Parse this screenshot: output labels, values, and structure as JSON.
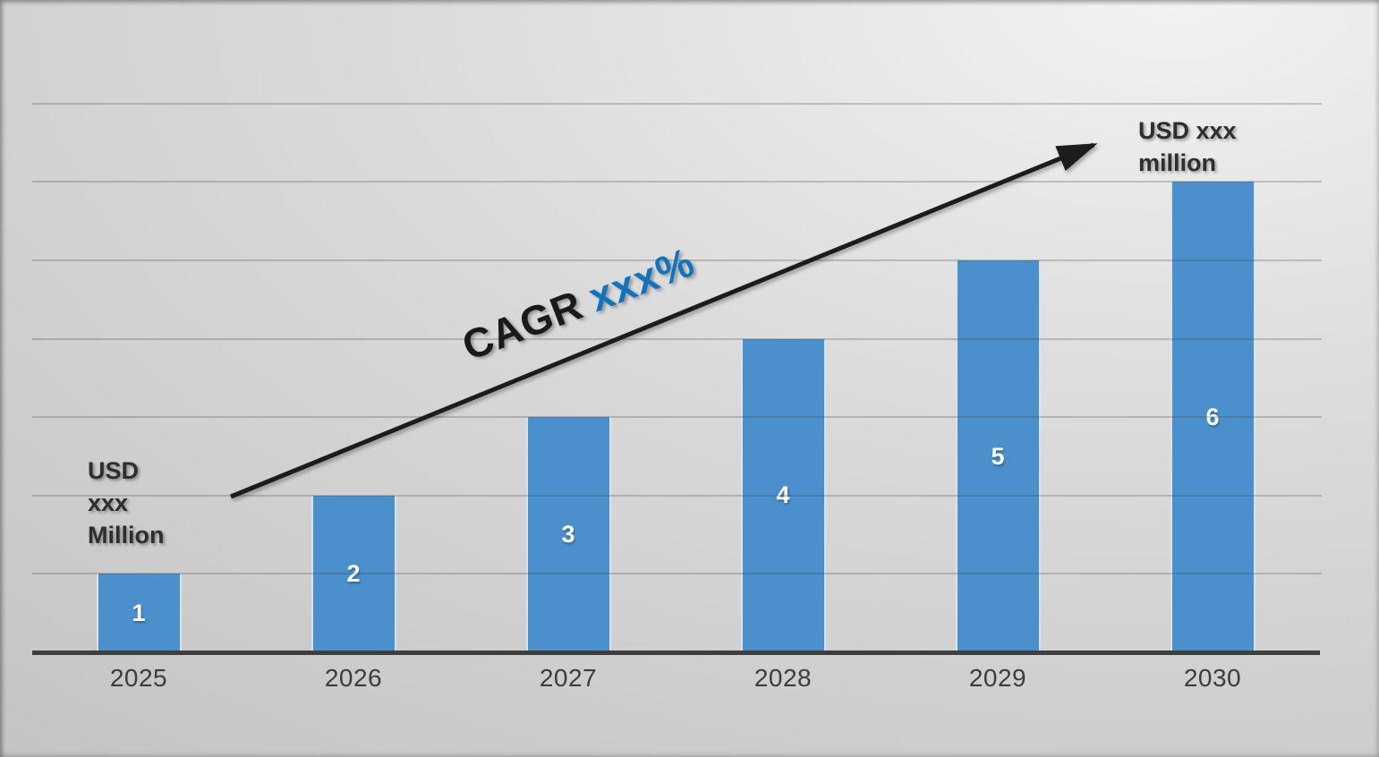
{
  "chart_data": {
    "type": "bar",
    "categories": [
      "2025",
      "2026",
      "2027",
      "2028",
      "2029",
      "2030"
    ],
    "values": [
      1,
      2,
      3,
      4,
      5,
      6
    ],
    "bar_labels": [
      "1",
      "2",
      "3",
      "4",
      "5",
      "6"
    ],
    "title": "",
    "xlabel": "",
    "ylabel": "",
    "ylim": [
      0,
      7
    ],
    "gridline_step": 1,
    "grid": "horizontal gridlines on, no y-axis tick labels, legend off",
    "bar_color": "#4b90cc"
  },
  "annotations": {
    "start_value": {
      "lines": [
        "USD",
        "xxx",
        "Million"
      ]
    },
    "end_value": {
      "lines": [
        "USD xxx",
        "million"
      ]
    },
    "cagr": {
      "prefix": "CAGR",
      "value": "xxx%",
      "value_color": "#1273bd"
    },
    "trend_arrow": "black diagonal arrow from 2025 bar area to top-right value label"
  },
  "colors": {
    "bar_fill": "#4b90cc",
    "bar_edge": "#d9e3ed",
    "accent_blue": "#1273bd",
    "arrow_black": "#1a1a1a",
    "text_dark": "#2e2e2e",
    "axis_line": "#3e3e3e",
    "tick_text": "#3d3d3d",
    "bar_label_white": "#ffffff"
  }
}
